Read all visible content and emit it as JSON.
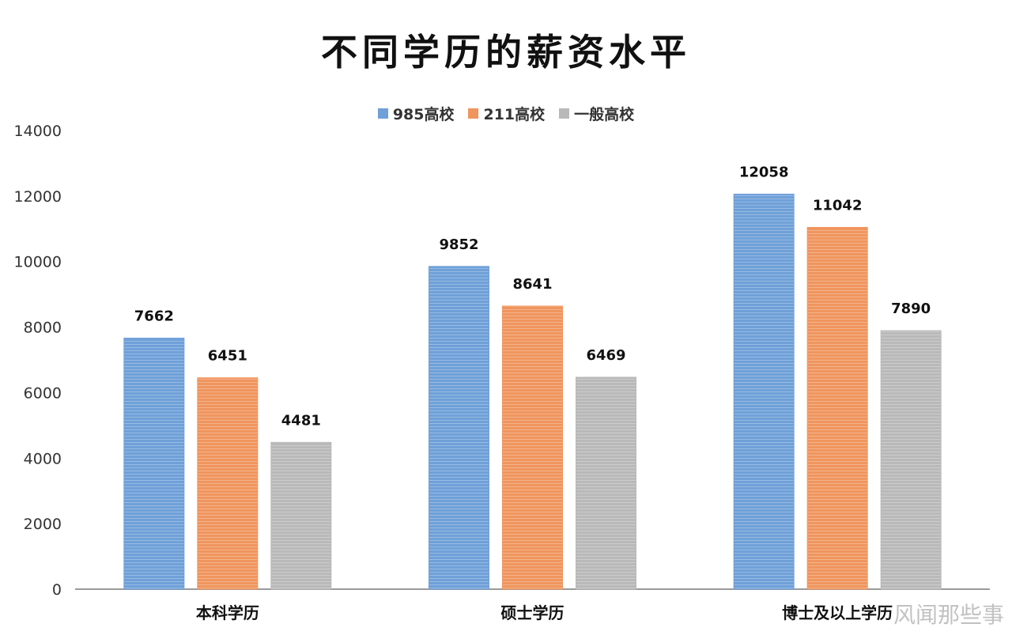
{
  "chart_data": {
    "type": "bar",
    "title": "不同学历的薪资水平",
    "categories": [
      "本科学历",
      "硕士学历",
      "博士及以上学历"
    ],
    "series": [
      {
        "name": "985高校",
        "values": [
          7662,
          9852,
          12058
        ],
        "color": "#6fa0d8"
      },
      {
        "name": "211高校",
        "values": [
          6451,
          8641,
          11042
        ],
        "color": "#f0955e"
      },
      {
        "name": "一般高校",
        "values": [
          4481,
          6469,
          7890
        ],
        "color": "#b9b9b9"
      }
    ],
    "ylim": [
      0,
      14000
    ],
    "yticks": [
      "0",
      "2000",
      "4000",
      "6000",
      "8000",
      "10000",
      "12000",
      "14000"
    ],
    "grid": false,
    "legend_position": "top"
  },
  "watermark": "风闻那些事"
}
